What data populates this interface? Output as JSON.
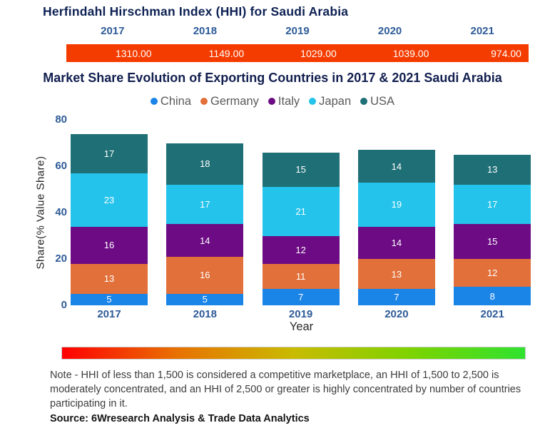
{
  "chart_data": [
    {
      "type": "table",
      "title": "Herfindahl Hirschman Index (HHI) for Saudi Arabia",
      "columns": [
        "2017",
        "2018",
        "2019",
        "2020",
        "2021"
      ],
      "rows": [
        [
          "1310.00",
          "1149.00",
          "1029.00",
          "1039.00",
          "974.00"
        ]
      ],
      "row_background_color": "#f53c00",
      "header_text_color": "#2e5b97"
    },
    {
      "type": "bar",
      "stacked": true,
      "title": "Market Share Evolution of Exporting Countries in 2017 & 2021 Saudi Arabia",
      "categories": [
        "2017",
        "2018",
        "2019",
        "2020",
        "2021"
      ],
      "series": [
        {
          "name": "China",
          "color": "#1b84e7",
          "values": [
            5,
            5,
            7,
            7,
            8
          ]
        },
        {
          "name": "Germany",
          "color": "#e2703a",
          "values": [
            13,
            16,
            11,
            13,
            12
          ]
        },
        {
          "name": "Italy",
          "color": "#6c0b83",
          "values": [
            16,
            14,
            12,
            14,
            15
          ]
        },
        {
          "name": "Japan",
          "color": "#23c3eb",
          "values": [
            23,
            17,
            21,
            19,
            17
          ]
        },
        {
          "name": "USA",
          "color": "#1f6f76",
          "values": [
            17,
            18,
            15,
            14,
            13
          ]
        }
      ],
      "totals": [
        74,
        70,
        66,
        67,
        65
      ],
      "xlabel": "Year",
      "ylabel": "Share(% Value Share)",
      "ylim": [
        0,
        80
      ],
      "yticks": [
        0,
        20,
        40,
        60,
        80
      ],
      "legend_position": "top",
      "grid": false,
      "bar_labels_shown": true
    }
  ],
  "hhi_scale_gradient": [
    "#ff0000",
    "#e87200",
    "#c9bb00",
    "#7ed300",
    "#2fe22f"
  ],
  "note": {
    "text": "Note - HHI of less than 1,500 is considered a competitive marketplace, an HHI of 1,500 to 2,500 is moderately concentrated, and an HHI of 2,500 or greater is highly concentrated by number of countries participating in it.",
    "source": "Source: 6Wresearch Analysis & Trade Data Analytics"
  }
}
